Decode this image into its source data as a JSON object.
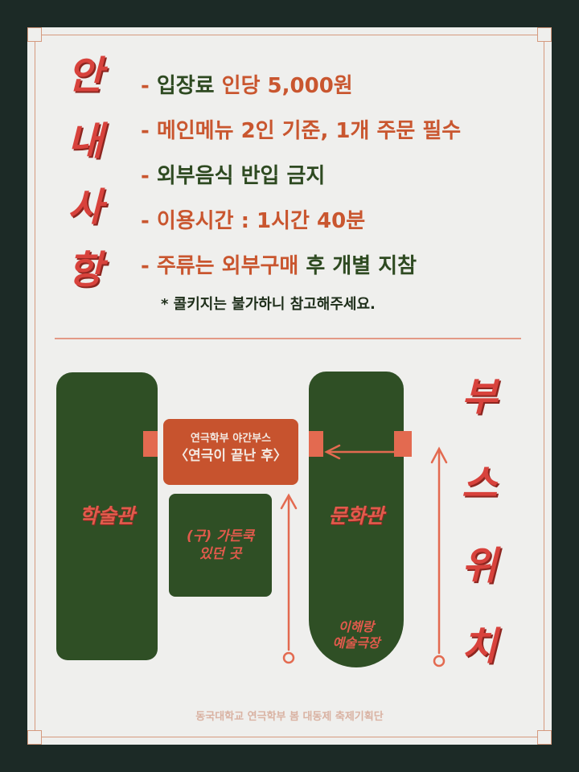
{
  "notice_title": [
    "안",
    "내",
    "사",
    "항"
  ],
  "notice_items": [
    {
      "dash": "- ",
      "green": "입장료 ",
      "orange": "인당 5,000원"
    },
    {
      "dash": "- ",
      "orange": "메인메뉴 2인 기준, 1개 주문 필수"
    },
    {
      "dash": "- ",
      "green": "외부음식 반입 금지"
    },
    {
      "dash": "- ",
      "green": "이용시간 : 1시간 40분"
    },
    {
      "dash": "- ",
      "orange": "주류는 외부구매 ",
      "green": "후 개별 지참"
    }
  ],
  "note": "* 콜키지는 불가하니 참고해주세요.",
  "booth_title": [
    "부",
    "스",
    "위",
    "치"
  ],
  "map": {
    "left_building": "학술관",
    "right_building": "문화관",
    "booth_line1": "연극학부 야간부스",
    "booth_line2": "〈연극이 끝난 후〉",
    "former_line1": "(구) 가든쿡",
    "former_line2": "있던 곳",
    "theater_line1": "이해랑",
    "theater_line2": "예술극장"
  },
  "footer": "동국대학교 연극학부 봄 대동제 축제기획단",
  "colors": {
    "background": "#1c2a26",
    "card": "#efefed",
    "green": "#2f4f25",
    "red": "#d8423c",
    "orange": "#c9562f",
    "salmon": "#e36a50"
  }
}
